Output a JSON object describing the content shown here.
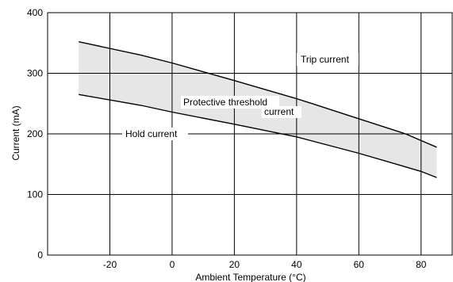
{
  "chart_data": {
    "type": "area",
    "xlabel": "Ambient Temperature (°C)",
    "ylabel": "Current (mA)",
    "xlim": [
      -40,
      90
    ],
    "ylim": [
      0,
      400
    ],
    "x_ticks": [
      -20,
      0,
      20,
      40,
      60,
      80
    ],
    "y_ticks": [
      0,
      100,
      200,
      300,
      400
    ],
    "x_tick_labels": [
      "-20",
      "0",
      "20",
      "40",
      "60",
      "80"
    ],
    "y_tick_labels": [
      "0",
      "100",
      "200",
      "300",
      "400"
    ],
    "grid": true,
    "band_fill": "#e6e6e6",
    "series": [
      {
        "name": "Trip current",
        "x": [
          -30,
          -10,
          0,
          20,
          40,
          45,
          60,
          75,
          85
        ],
        "values": [
          352,
          330,
          317,
          288,
          258,
          250,
          225,
          200,
          178
        ]
      },
      {
        "name": "Hold current",
        "x": [
          -30,
          -10,
          0,
          20,
          40,
          60,
          80,
          85
        ],
        "values": [
          265,
          247,
          236,
          216,
          195,
          168,
          138,
          128
        ]
      }
    ],
    "annotations": [
      {
        "id": "trip",
        "lines": [
          "Trip current"
        ]
      },
      {
        "id": "threshold",
        "lines": [
          "Protective threshold",
          "current"
        ]
      },
      {
        "id": "hold",
        "lines": [
          "Hold current"
        ]
      }
    ]
  }
}
